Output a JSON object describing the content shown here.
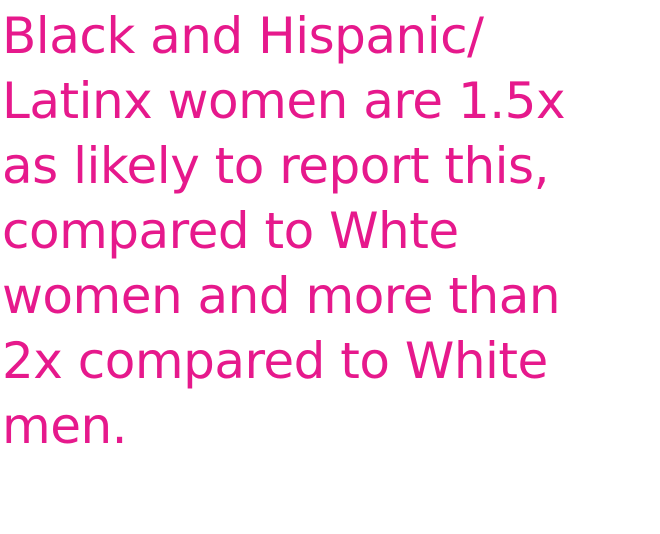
{
  "statement": {
    "lines": [
      "Black and Hispanic/",
      "Latinx women are 1.5x",
      "as likely to report this,",
      "compared to Whte",
      "women and more than",
      "2x compared to White",
      "men."
    ]
  },
  "colors": {
    "text": "#e6198c",
    "background": "#ffffff"
  }
}
